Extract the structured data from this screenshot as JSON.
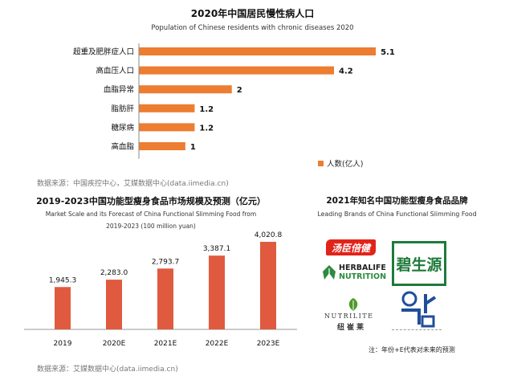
{
  "chart_data": [
    {
      "type": "bar",
      "orientation": "horizontal",
      "title": "2020年中国居民慢性病人口",
      "subtitle": "Population of Chinese residents with chronic diseases 2020",
      "categories": [
        "超重及肥胖症人口",
        "高血压人口",
        "血脂异常",
        "脂肪肝",
        "糖尿病",
        "高血脂"
      ],
      "series": [
        {
          "name": "人数(亿人)",
          "values": [
            5.1,
            4.2,
            2,
            1.2,
            1.2,
            1
          ]
        }
      ],
      "value_labels": [
        "5.1",
        "4.2",
        "2",
        "1.2",
        "1.2",
        "1"
      ],
      "xlim": [
        0,
        5.6
      ],
      "legend": "bottom-right",
      "grid": false,
      "color": "#ED7D31"
    },
    {
      "type": "bar",
      "title": "2019-2023中国功能型瘦身食品市场规模及预测（亿元）",
      "subtitle_line1": "Market Scale and its Forecast of China Functional Slimming Food from",
      "subtitle_line2": "2019-2023 (100 million yuan)",
      "categories": [
        "2019",
        "2020E",
        "2021E",
        "2022E",
        "2023E"
      ],
      "values": [
        1945.3,
        2283.0,
        2793.7,
        3387.1,
        4020.8
      ],
      "value_labels": [
        "1,945.3",
        "2,283.0",
        "2,793.7",
        "3,387.1",
        "4,020.8"
      ],
      "ylim": [
        0,
        4500
      ],
      "grid": false,
      "color": "#E05A3F"
    }
  ],
  "source1": "数据来源：中国疾控中心，艾媒数据中心(data.iimedia.cn)",
  "source2": "数据来源：艾媒数据中心(data.iimedia.cn)",
  "brands": {
    "title": "2021年知名中国功能型瘦身食品品牌",
    "subtitle": "Leading Brands of China Functional Slimming Food",
    "tangchen": "汤臣倍健",
    "herbalife_1": "HERBALIFE",
    "herbalife_2": "NUTRITION",
    "bishengyuan": "碧生源",
    "nutrilite_en": "NUTRILITE",
    "nutrilite_cn": "纽崔莱",
    "note": "注：年份+E代表对未来的预测"
  },
  "colors": {
    "orange": "#ED7D31",
    "red": "#E05A3F",
    "herbalife_green": "#2E8B3E",
    "bishengyuan_green": "#1E7A3A",
    "nutrilite_green": "#4C9A2A",
    "blue": "#1F4E9A",
    "tangchen_red": "#E2231A"
  }
}
